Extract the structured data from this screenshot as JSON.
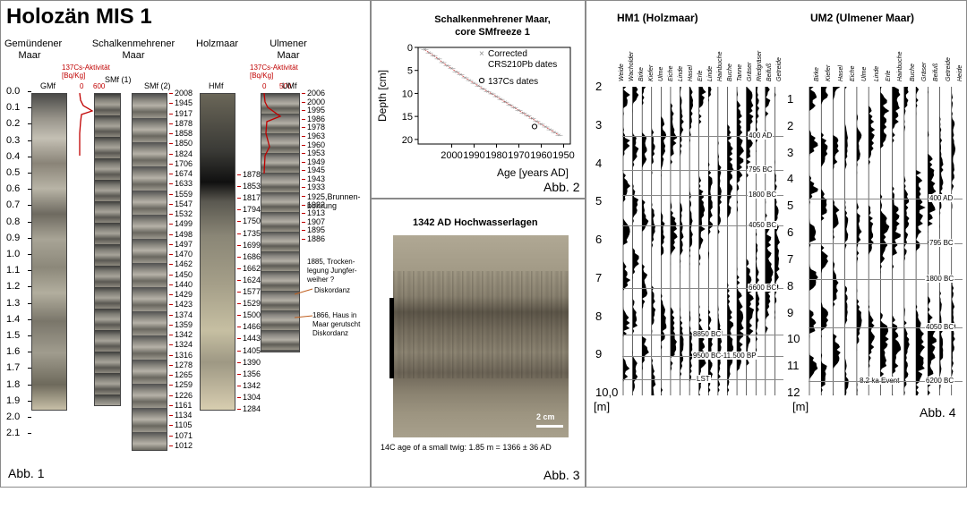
{
  "abb1": {
    "title": "Holozän MIS 1",
    "core_names": [
      "Gemündener\nMaar",
      "Schalkenmehrener\nMaar",
      "Holzmaar",
      "Ulmener\nMaar"
    ],
    "cs_label": "137Cs-Aktivität\n[Bq/Kg]",
    "cs_axis_1": [
      "0",
      "600"
    ],
    "cs_axis_2": [
      "0",
      "500"
    ],
    "core_codes": [
      "GMf",
      "SMf (1)",
      "SMf (2)",
      "HMf",
      "UMf"
    ],
    "depth_ticks": [
      "0.0",
      "0.1",
      "0.2",
      "0.3",
      "0.4",
      "0.5",
      "0.6",
      "0.7",
      "0.8",
      "0.9",
      "1.0",
      "1.1",
      "1.2",
      "1.3",
      "1.4",
      "1.5",
      "1.6",
      "1.7",
      "1.8",
      "1.9",
      "2.0",
      "2.1"
    ],
    "smf_dates": [
      "2008",
      "1945",
      "1917",
      "1878",
      "1858",
      "1850",
      "1824",
      "1706",
      "1674",
      "1633",
      "1559",
      "1547",
      "1532",
      "1499",
      "1498",
      "1497",
      "1470",
      "1462",
      "1450",
      "1440",
      "1429",
      "1423",
      "1374",
      "1359",
      "1342",
      "1324",
      "1316",
      "1278",
      "1265",
      "1259",
      "1226",
      "1161",
      "1134",
      "1105",
      "1071",
      "1012"
    ],
    "hmf_dates": [
      "1878",
      "1853",
      "1817",
      "1794",
      "1750",
      "1735",
      "1699",
      "1686",
      "1662",
      "1624",
      "1577",
      "1529",
      "1500",
      "1466",
      "1443",
      "1405",
      "1390",
      "1356",
      "1342",
      "1304",
      "1284"
    ],
    "umf_dates": [
      "2006",
      "2000",
      "1995",
      "1986",
      "1978",
      "1963",
      "1960",
      "1953",
      "1949",
      "1945",
      "1943",
      "1933",
      "1925,Brunnen-\nbohrung",
      "1922",
      "1913",
      "1907",
      "1895",
      "1886"
    ],
    "notes": [
      "1885, Trocken-\nlegung Jungfer-\nweiher ?",
      "Diskordanz",
      "1866, Haus in\nMaar gerutscht\nDiskordanz"
    ],
    "label": "Abb. 1"
  },
  "abb2": {
    "title": "Schalkenmehrener Maar,\ncore SMfreeze 1",
    "ylabel": "Depth [cm]",
    "xlabel": "Age [years AD]",
    "xticks": [
      "2000",
      "1990",
      "1980",
      "1970",
      "1960",
      "1950"
    ],
    "yticks": [
      "0",
      "5",
      "10",
      "15",
      "20"
    ],
    "legend": [
      "Corrected\nCRS210Pb dates",
      "137Cs dates"
    ],
    "label": "Abb. 2"
  },
  "abb3": {
    "title": "1342 AD Hochwasserlagen",
    "scale": "2 cm",
    "caption": "14C age of a small twig: 1.85 m = 1366 ± 36 AD",
    "label": "Abb. 3"
  },
  "abb4": {
    "hm1_title": "HM1 (Holzmaar)",
    "um2_title": "UM2 (Ulmener Maar)",
    "hm1_taxa": [
      "Weide",
      "Wacholder",
      "Birke",
      "Kiefer",
      "Ulme",
      "Eiche",
      "Linde",
      "Hasel",
      "Erle",
      "Linde",
      "Hainbuche",
      "Buche",
      "Tanne",
      "Gräser",
      "Riedgräser",
      "Beifuß",
      "Getreide"
    ],
    "um2_taxa": [
      "Birke",
      "Kiefer",
      "Hasel",
      "Eiche",
      "Ulme",
      "Linde",
      "Erle",
      "Hainbuche",
      "Buche",
      "Gräser",
      "Beifuß",
      "Getreide",
      "Heide"
    ],
    "hm1_depth": [
      "2",
      "3",
      "4",
      "5",
      "6",
      "7",
      "8",
      "9",
      "10,0"
    ],
    "um2_depth": [
      "1",
      "2",
      "3",
      "4",
      "5",
      "6",
      "7",
      "8",
      "9",
      "10",
      "11",
      "12"
    ],
    "unit": "[m]",
    "hm1_zones": [
      "400 AD",
      "795 BC",
      "1800 BC",
      "4050 BC",
      "6600 BC",
      "8850 BC",
      "9500 BC-11.500 BP",
      "LST"
    ],
    "um2_zones": [
      "400 AD",
      "795 BC",
      "1800 BC",
      "4050 BC",
      "8.2 ka Event",
      "6200 BC"
    ],
    "label": "Abb. 4"
  },
  "chart_data": {
    "type": "scatter",
    "title": "Schalkenmehrener Maar, core SMfreeze 1",
    "xlabel": "Age [years AD]",
    "ylabel": "Depth [cm]",
    "xlim": [
      2015,
      1947
    ],
    "ylim": [
      0,
      21
    ],
    "series": [
      {
        "name": "Corrected CRS210Pb dates",
        "x": [
          2012,
          2010,
          2008,
          2006,
          2004,
          2002,
          2000,
          1998,
          1996,
          1994,
          1992,
          1990,
          1988,
          1986,
          1984,
          1982,
          1980,
          1978,
          1976,
          1974,
          1972,
          1970,
          1968,
          1966,
          1964,
          1962,
          1960,
          1958,
          1956,
          1954,
          1952
        ],
        "y": [
          0.5,
          1.2,
          1.8,
          2.5,
          3.3,
          4.0,
          4.6,
          5.3,
          5.9,
          6.6,
          7.2,
          7.8,
          8.4,
          9.0,
          9.6,
          10.1,
          10.7,
          11.3,
          11.9,
          12.5,
          13.1,
          13.7,
          14.3,
          14.9,
          15.5,
          16.1,
          16.7,
          17.3,
          17.9,
          18.5,
          19.1
        ]
      },
      {
        "name": "137Cs dates",
        "x": [
          1963
        ],
        "y": [
          17.2
        ]
      }
    ]
  }
}
